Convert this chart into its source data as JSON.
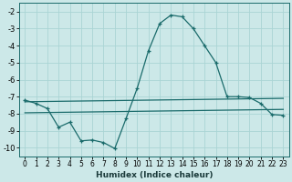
{
  "xlabel": "Humidex (Indice chaleur)",
  "xlim": [
    -0.5,
    23.5
  ],
  "ylim": [
    -10.5,
    -1.5
  ],
  "yticks": [
    -10,
    -9,
    -8,
    -7,
    -6,
    -5,
    -4,
    -3,
    -2
  ],
  "xticks": [
    0,
    1,
    2,
    3,
    4,
    5,
    6,
    7,
    8,
    9,
    10,
    11,
    12,
    13,
    14,
    15,
    16,
    17,
    18,
    19,
    20,
    21,
    22,
    23
  ],
  "bg_color": "#cce8e8",
  "line_color": "#1a6b6b",
  "grid_color": "#aad4d4",
  "main_curve": {
    "x": [
      0,
      1,
      2,
      3,
      4,
      5,
      6,
      7,
      8,
      9,
      10,
      11,
      12,
      13,
      14,
      15,
      16,
      17,
      18,
      19,
      20,
      21,
      22,
      23
    ],
    "y": [
      -7.2,
      -7.4,
      -7.7,
      -8.8,
      -8.5,
      -9.6,
      -9.55,
      -9.7,
      -10.05,
      -8.3,
      -6.5,
      -4.3,
      -2.7,
      -2.2,
      -2.3,
      -3.0,
      -4.0,
      -5.0,
      -7.0,
      -7.0,
      -7.05,
      -7.4,
      -8.05,
      -8.1
    ]
  },
  "flat_upper": {
    "x": [
      0,
      23
    ],
    "y": [
      -7.3,
      -7.1
    ]
  },
  "flat_lower": {
    "x": [
      0,
      23
    ],
    "y": [
      -7.95,
      -7.75
    ]
  }
}
